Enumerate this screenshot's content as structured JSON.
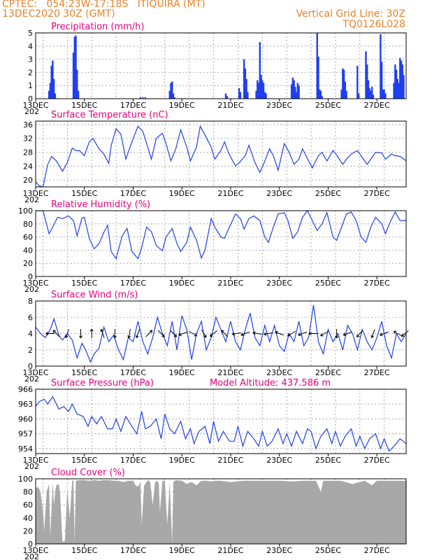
{
  "header": {
    "left_line1": "CPTEC:   054:23W-17:18S   ITIQUIRA (MT)",
    "left_line2": "13DEC2020 30Z (GMT)",
    "right_line1": "Vertical Grid Line: 30Z",
    "right_line2": "TQ0126L028",
    "accent_color": "#e8822a"
  },
  "x_axis": {
    "date_labels": [
      "13DEC",
      "15DEC",
      "17DEC",
      "19DEC",
      "21DEC",
      "23DEC",
      "25DEC",
      "27DEC"
    ],
    "year_stub": "202",
    "day_range": [
      13.0,
      28.2
    ]
  },
  "chart_data": [
    {
      "type": "bar",
      "title": "Precipitation (mm/h)",
      "ylim": [
        0,
        5
      ],
      "yticks": [
        "0",
        "1",
        "2",
        "3",
        "4",
        "5"
      ],
      "series_color": "#1f3ff0",
      "x_days": [
        13.55,
        13.6,
        13.65,
        13.7,
        13.75,
        13.8,
        14.55,
        14.6,
        14.65,
        14.7,
        14.75,
        17.3,
        17.4,
        17.5,
        18.5,
        18.55,
        18.6,
        18.65,
        18.7,
        20.8,
        20.85,
        21.35,
        21.4,
        21.55,
        21.6,
        21.65,
        21.7,
        22.05,
        22.1,
        22.15,
        22.2,
        22.25,
        22.3,
        22.35,
        22.4,
        22.45,
        23.5,
        23.55,
        23.6,
        23.65,
        23.7,
        23.75,
        23.8,
        24.55,
        24.6,
        24.65,
        24.7,
        24.75,
        25.55,
        25.6,
        25.65,
        25.7,
        25.75,
        26.2,
        26.25,
        26.55,
        26.6,
        26.65,
        26.7,
        26.75,
        26.8,
        26.85,
        27.15,
        27.2,
        27.25,
        27.3,
        27.35,
        27.7,
        27.75,
        27.8,
        27.85,
        27.9,
        27.95,
        28.0,
        28.05,
        28.1
      ],
      "values": [
        0.6,
        1.2,
        2.5,
        2.9,
        1.5,
        0.4,
        3.5,
        4.7,
        4.8,
        2.2,
        0.6,
        0.1,
        0.1,
        0.1,
        0.6,
        1.2,
        1.3,
        0.4,
        0.1,
        0.4,
        0.2,
        0.8,
        0.5,
        3.0,
        2.3,
        1.5,
        0.5,
        0.6,
        1.4,
        1.2,
        4.3,
        1.8,
        1.4,
        1.2,
        0.5,
        0.4,
        1.1,
        1.6,
        1.4,
        0.9,
        0.5,
        1.2,
        1.0,
        5.0,
        3.2,
        0.7,
        0.6,
        0.2,
        0.7,
        2.3,
        2.2,
        1.3,
        0.6,
        2.5,
        0.4,
        3.6,
        2.6,
        1.4,
        0.8,
        0.6,
        0.9,
        0.3,
        4.9,
        2.8,
        0.7,
        0.7,
        0.4,
        1.2,
        2.6,
        2.2,
        1.5,
        1.2,
        3.1,
        2.9,
        2.6,
        1.8
      ]
    },
    {
      "type": "line",
      "title": "Surface Temperature (nC)",
      "ylim": [
        18,
        37
      ],
      "yticks": [
        "20",
        "24",
        "28",
        "32",
        "36"
      ],
      "series_color": "#2040e8",
      "x_days": [
        13.0,
        13.15,
        13.3,
        13.5,
        13.65,
        13.85,
        14.1,
        14.3,
        14.5,
        14.65,
        14.8,
        15.0,
        15.2,
        15.35,
        15.6,
        15.8,
        16.0,
        16.1,
        16.3,
        16.5,
        16.7,
        16.95,
        17.2,
        17.4,
        17.6,
        17.75,
        17.95,
        18.2,
        18.35,
        18.55,
        18.75,
        18.95,
        19.2,
        19.35,
        19.6,
        19.75,
        19.95,
        20.2,
        20.35,
        20.6,
        20.75,
        20.9,
        21.2,
        21.35,
        21.6,
        21.75,
        22.0,
        22.2,
        22.35,
        22.6,
        22.75,
        22.95,
        23.2,
        23.4,
        23.6,
        23.8,
        23.95,
        24.2,
        24.35,
        24.6,
        24.75,
        24.95,
        25.2,
        25.35,
        25.6,
        25.75,
        25.95,
        26.2,
        26.35,
        26.6,
        26.75,
        26.95,
        27.2,
        27.35,
        27.6,
        27.75,
        27.95,
        28.2
      ],
      "values": [
        19.5,
        18.3,
        18.0,
        24.5,
        26.8,
        25.5,
        22.5,
        25.0,
        29.2,
        28.5,
        28.5,
        27.0,
        31.0,
        32.0,
        29.0,
        27.5,
        24.8,
        30.0,
        34.8,
        33.2,
        26.0,
        31.0,
        35.5,
        34.0,
        29.5,
        26.0,
        32.0,
        33.5,
        30.5,
        25.5,
        29.0,
        34.5,
        29.5,
        25.5,
        29.5,
        35.5,
        33.0,
        29.5,
        26.0,
        28.5,
        31.0,
        28.0,
        24.0,
        25.0,
        27.0,
        30.0,
        25.0,
        22.2,
        24.5,
        29.0,
        27.0,
        22.8,
        30.5,
        28.0,
        24.5,
        26.0,
        29.0,
        25.5,
        23.5,
        27.0,
        28.0,
        25.5,
        28.5,
        27.2,
        24.5,
        26.0,
        27.5,
        28.5,
        27.0,
        24.5,
        26.0,
        28.0,
        27.8,
        26.0,
        27.5,
        27.0,
        26.8,
        25.5
      ]
    },
    {
      "type": "line",
      "title": "Relative Humidity (%)",
      "ylim": [
        0,
        100
      ],
      "yticks": [
        "0",
        "20",
        "40",
        "60",
        "80",
        "100"
      ],
      "series_color": "#2040e8",
      "x_days": [
        13.0,
        13.3,
        13.55,
        13.7,
        13.9,
        14.1,
        14.35,
        14.55,
        14.7,
        14.9,
        15.0,
        15.2,
        15.4,
        15.6,
        15.8,
        15.95,
        16.1,
        16.3,
        16.55,
        16.75,
        16.95,
        17.2,
        17.35,
        17.55,
        17.75,
        17.95,
        18.2,
        18.35,
        18.6,
        18.8,
        18.95,
        19.2,
        19.35,
        19.6,
        19.8,
        19.95,
        20.2,
        20.35,
        20.6,
        20.75,
        20.95,
        21.2,
        21.4,
        21.55,
        21.75,
        21.95,
        22.2,
        22.4,
        22.55,
        22.75,
        22.95,
        23.2,
        23.35,
        23.55,
        23.75,
        23.95,
        24.15,
        24.35,
        24.55,
        24.75,
        24.95,
        25.2,
        25.35,
        25.55,
        25.75,
        25.95,
        26.15,
        26.35,
        26.55,
        26.75,
        26.95,
        27.2,
        27.35,
        27.55,
        27.75,
        27.95,
        28.2
      ],
      "values": [
        100,
        100,
        65,
        75,
        90,
        88,
        92,
        85,
        62,
        89,
        90,
        58,
        42,
        50,
        67,
        78,
        38,
        27,
        62,
        73,
        38,
        27,
        44,
        75,
        68,
        47,
        39,
        60,
        73,
        50,
        38,
        52,
        75,
        55,
        28,
        40,
        88,
        75,
        60,
        58,
        75,
        95,
        88,
        72,
        88,
        92,
        85,
        60,
        52,
        75,
        95,
        97,
        85,
        58,
        68,
        90,
        100,
        85,
        70,
        80,
        97,
        60,
        55,
        75,
        95,
        98,
        85,
        60,
        52,
        75,
        90,
        80,
        65,
        83,
        98,
        85,
        85
      ]
    },
    {
      "type": "line",
      "title": "Surface Wind (m/s)",
      "ylim": [
        0,
        8
      ],
      "yticks": [
        "0",
        "2",
        "4",
        "6",
        "8"
      ],
      "series_color": "#2040e8",
      "x_days": [
        13.0,
        13.2,
        13.4,
        13.6,
        13.75,
        13.95,
        14.1,
        14.3,
        14.5,
        14.7,
        14.9,
        15.05,
        15.25,
        15.4,
        15.6,
        15.8,
        16.0,
        16.2,
        16.4,
        16.6,
        16.8,
        17.0,
        17.2,
        17.4,
        17.6,
        17.8,
        18.0,
        18.2,
        18.4,
        18.6,
        18.8,
        19.0,
        19.2,
        19.4,
        19.6,
        19.8,
        20.0,
        20.2,
        20.4,
        20.6,
        20.8,
        21.0,
        21.2,
        21.4,
        21.6,
        21.8,
        22.0,
        22.2,
        22.4,
        22.6,
        22.8,
        23.0,
        23.2,
        23.4,
        23.6,
        23.8,
        24.0,
        24.2,
        24.4,
        24.6,
        24.8,
        25.0,
        25.2,
        25.4,
        25.6,
        25.8,
        26.0,
        26.2,
        26.4,
        26.6,
        26.8,
        27.0,
        27.2,
        27.4,
        27.6,
        27.8,
        28.0,
        28.2
      ],
      "values": [
        4.8,
        4.0,
        3.5,
        4.5,
        5.8,
        3.8,
        3.2,
        4.0,
        3.2,
        1.0,
        2.8,
        2.0,
        0.5,
        1.5,
        2.2,
        4.8,
        3.0,
        3.8,
        2.0,
        0.8,
        3.5,
        3.0,
        5.5,
        3.0,
        1.5,
        3.5,
        6.0,
        4.0,
        2.5,
        5.5,
        2.0,
        6.2,
        4.5,
        0.8,
        4.0,
        5.5,
        2.0,
        3.5,
        6.0,
        4.5,
        3.0,
        5.5,
        3.0,
        2.0,
        4.5,
        6.5,
        3.5,
        2.5,
        5.0,
        3.0,
        5.0,
        2.5,
        1.8,
        4.0,
        3.0,
        5.5,
        2.5,
        3.5,
        7.5,
        3.0,
        1.5,
        4.5,
        3.0,
        4.0,
        2.0,
        5.0,
        4.0,
        2.0,
        4.5,
        3.0,
        2.0,
        3.5,
        5.5,
        2.5,
        1.0,
        4.0,
        3.0,
        4.0
      ],
      "arrows": [
        {
          "day": 13.6,
          "dir_deg": 180
        },
        {
          "day": 13.85,
          "dir_deg": 135
        },
        {
          "day": 14.3,
          "dir_deg": 250
        },
        {
          "day": 14.85,
          "dir_deg": 270
        },
        {
          "day": 15.3,
          "dir_deg": 90
        },
        {
          "day": 15.75,
          "dir_deg": 110
        },
        {
          "day": 16.25,
          "dir_deg": 270
        },
        {
          "day": 16.85,
          "dir_deg": 260
        },
        {
          "day": 17.2,
          "dir_deg": 250
        },
        {
          "day": 17.65,
          "dir_deg": 45
        },
        {
          "day": 18.15,
          "dir_deg": 315
        },
        {
          "day": 18.65,
          "dir_deg": 315
        },
        {
          "day": 19.05,
          "dir_deg": 200
        },
        {
          "day": 19.45,
          "dir_deg": 330
        },
        {
          "day": 19.9,
          "dir_deg": 300
        },
        {
          "day": 20.3,
          "dir_deg": 220
        },
        {
          "day": 20.75,
          "dir_deg": 135
        },
        {
          "day": 21.25,
          "dir_deg": 190
        },
        {
          "day": 21.6,
          "dir_deg": 200
        },
        {
          "day": 22.1,
          "dir_deg": 170
        },
        {
          "day": 22.55,
          "dir_deg": 190
        },
        {
          "day": 23.0,
          "dir_deg": 160
        },
        {
          "day": 23.5,
          "dir_deg": 210
        },
        {
          "day": 23.95,
          "dir_deg": 200
        },
        {
          "day": 24.4,
          "dir_deg": 180
        },
        {
          "day": 24.85,
          "dir_deg": 210
        },
        {
          "day": 25.35,
          "dir_deg": 270
        },
        {
          "day": 25.8,
          "dir_deg": 200
        },
        {
          "day": 26.3,
          "dir_deg": 230
        },
        {
          "day": 26.85,
          "dir_deg": 250
        },
        {
          "day": 27.3,
          "dir_deg": 200
        },
        {
          "day": 27.85,
          "dir_deg": 150
        },
        {
          "day": 28.15,
          "dir_deg": 220
        }
      ]
    },
    {
      "type": "line",
      "title": "Surface Pressure (hPa)",
      "annotation": "Model Altitude: 437.586  m",
      "ylim": [
        953,
        966
      ],
      "yticks": [
        "954",
        "957",
        "960",
        "963",
        "966"
      ],
      "series_color": "#2040e8",
      "x_days": [
        13.0,
        13.15,
        13.35,
        13.5,
        13.7,
        13.95,
        14.15,
        14.35,
        14.5,
        14.7,
        14.95,
        15.15,
        15.3,
        15.5,
        15.7,
        15.95,
        16.15,
        16.3,
        16.5,
        16.7,
        16.95,
        17.15,
        17.35,
        17.5,
        17.7,
        17.95,
        18.15,
        18.3,
        18.5,
        18.7,
        18.95,
        19.15,
        19.35,
        19.5,
        19.7,
        19.95,
        20.15,
        20.3,
        20.5,
        20.7,
        20.95,
        21.15,
        21.3,
        21.5,
        21.7,
        21.95,
        22.15,
        22.3,
        22.5,
        22.7,
        22.95,
        23.15,
        23.3,
        23.5,
        23.7,
        23.95,
        24.15,
        24.3,
        24.5,
        24.7,
        24.95,
        25.15,
        25.3,
        25.5,
        25.7,
        25.95,
        26.15,
        26.3,
        26.5,
        26.7,
        26.95,
        27.15,
        27.3,
        27.5,
        27.7,
        27.95,
        28.2
      ],
      "values": [
        962.5,
        963.5,
        964.0,
        963.0,
        964.5,
        962.0,
        962.5,
        961.5,
        963.0,
        961.0,
        960.5,
        958.5,
        960.5,
        959.0,
        960.5,
        958.0,
        958.0,
        960.0,
        957.5,
        960.5,
        958.5,
        957.0,
        961.5,
        958.0,
        958.5,
        960.0,
        956.0,
        961.0,
        958.0,
        957.0,
        959.5,
        956.0,
        958.0,
        955.0,
        957.5,
        958.5,
        955.0,
        959.5,
        955.5,
        957.5,
        955.5,
        955.5,
        958.5,
        954.5,
        957.5,
        956.0,
        954.5,
        957.5,
        954.5,
        955.5,
        958.0,
        955.0,
        957.0,
        954.5,
        957.5,
        955.0,
        958.0,
        957.5,
        954.0,
        956.5,
        958.0,
        955.0,
        957.5,
        954.5,
        956.5,
        958.0,
        954.5,
        956.5,
        954.0,
        956.0,
        957.0,
        954.0,
        956.0,
        953.5,
        954.5,
        956.0,
        955.0
      ]
    },
    {
      "type": "area",
      "title": "Cloud Cover (%)",
      "ylim": [
        0,
        100
      ],
      "yticks": [
        "0",
        "20",
        "40",
        "60",
        "80",
        "100"
      ],
      "series_color": "#a8a8a8",
      "x_days": [
        13.0,
        13.1,
        13.2,
        13.3,
        13.35,
        13.45,
        13.55,
        13.6,
        13.7,
        13.75,
        13.8,
        13.85,
        13.95,
        14.0,
        14.1,
        14.2,
        14.3,
        14.4,
        14.5,
        14.55,
        14.6,
        14.65,
        14.8,
        15.0,
        15.2,
        15.4,
        15.6,
        15.8,
        16.0,
        16.2,
        16.4,
        16.6,
        16.8,
        17.0,
        17.1,
        17.2,
        17.3,
        17.35,
        17.45,
        17.5,
        17.6,
        17.7,
        17.8,
        17.9,
        18.0,
        18.05,
        18.1,
        18.2,
        18.3,
        18.4,
        18.5,
        18.6,
        18.65,
        18.7,
        18.8,
        19.0,
        19.2,
        19.4,
        19.6,
        19.8,
        20.0,
        20.2,
        20.4,
        20.6,
        20.8,
        21.0,
        21.5,
        22.0,
        22.5,
        23.0,
        23.5,
        24.0,
        24.5,
        24.7,
        24.8,
        25.0,
        25.5,
        26.0,
        26.5,
        26.8,
        27.0,
        27.5,
        28.0,
        28.2
      ],
      "values": [
        85,
        88,
        80,
        50,
        20,
        80,
        92,
        10,
        95,
        60,
        80,
        90,
        92,
        78,
        3,
        5,
        85,
        40,
        97,
        98,
        3,
        97,
        98,
        98,
        97,
        98,
        97,
        98,
        98,
        97,
        97,
        95,
        97,
        97,
        90,
        88,
        95,
        30,
        90,
        92,
        98,
        95,
        60,
        95,
        97,
        92,
        50,
        97,
        97,
        30,
        95,
        1,
        95,
        97,
        98,
        97,
        92,
        95,
        90,
        97,
        97,
        96,
        97,
        97,
        96,
        95,
        97,
        97,
        97,
        97,
        96,
        97,
        97,
        80,
        97,
        97,
        97,
        92,
        97,
        90,
        97,
        97,
        97,
        97
      ]
    }
  ]
}
